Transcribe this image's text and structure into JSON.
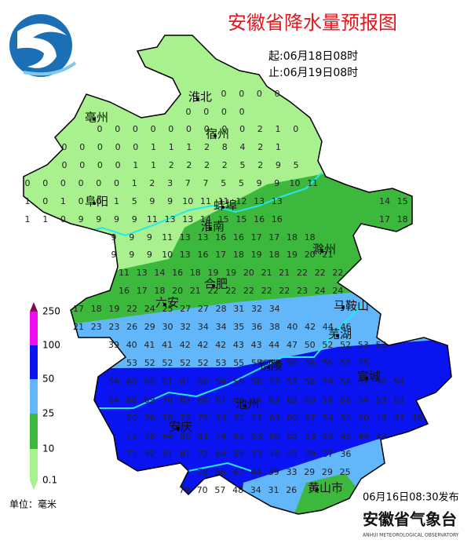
{
  "header": {
    "title": "安徽省降水量预报图",
    "start": "起:06月18日08时",
    "end": "止:06月19日08时"
  },
  "legend": {
    "levels": [
      0.1,
      10,
      25,
      50,
      100,
      250
    ],
    "unit": "单位：毫米"
  },
  "cities": [
    "淮北",
    "亳州",
    "宿州",
    "阜阳",
    "蚌埠",
    "淮南",
    "滁州",
    "合肥",
    "六安",
    "马鞍山",
    "芜湖",
    "铜陵",
    "宣城",
    "池州",
    "安庆",
    "黄山市"
  ],
  "grid_values": [
    [
      0,
      0,
      0,
      0
    ],
    [
      0,
      0,
      0,
      0
    ],
    [
      0,
      0,
      0,
      0,
      0,
      0,
      0,
      0,
      0,
      2,
      1,
      0
    ],
    [
      0,
      0,
      0,
      0,
      0,
      1,
      1,
      1,
      2,
      8,
      4,
      2,
      1
    ],
    [
      0,
      0,
      0,
      0,
      1,
      1,
      2,
      2,
      2,
      2,
      5,
      2,
      9,
      5
    ],
    [
      0,
      0,
      0,
      0,
      0,
      0,
      1,
      2,
      3,
      7,
      7,
      5,
      5,
      9,
      9,
      10,
      11
    ],
    [
      1,
      0,
      1,
      0,
      0,
      1,
      5,
      9,
      9,
      10,
      11,
      11,
      12,
      13,
      13
    ],
    [
      14,
      15
    ],
    [
      1,
      1,
      0,
      9,
      9,
      9,
      9,
      11,
      13,
      13,
      14,
      15,
      15,
      16,
      16
    ],
    [
      17,
      18
    ],
    [
      9,
      9,
      9,
      11,
      13,
      13,
      16,
      16,
      17,
      17,
      18,
      18
    ],
    [
      9,
      9,
      9,
      10,
      13,
      16,
      17,
      18,
      19,
      18,
      19,
      20,
      21
    ],
    [
      11,
      13,
      14,
      16,
      18,
      19,
      19,
      20,
      21,
      21,
      22,
      22,
      22
    ],
    [
      16,
      17,
      18,
      20,
      21,
      22,
      22,
      22,
      22,
      22,
      23,
      24,
      24
    ],
    [
      17,
      18,
      19,
      22,
      24,
      25,
      27,
      27,
      28,
      31,
      32,
      34
    ],
    [
      21,
      23,
      23,
      26,
      29,
      30,
      32,
      34,
      34,
      35,
      36,
      38,
      40,
      42,
      44,
      46
    ],
    [
      39,
      40,
      41,
      41,
      42,
      42,
      42,
      43,
      43,
      44,
      47,
      50,
      52,
      52,
      53,
      53
    ],
    [
      53,
      52,
      52,
      52,
      52,
      53,
      55,
      55,
      56,
      56,
      56,
      56,
      55,
      55
    ],
    [
      59,
      60,
      60,
      61,
      61,
      60,
      59,
      58,
      58,
      57,
      57,
      58,
      59,
      58,
      57,
      56,
      54
    ],
    [
      64,
      68,
      69,
      70,
      69,
      68,
      67,
      65,
      64,
      63,
      62,
      60,
      58,
      56,
      54,
      53,
      53
    ],
    [
      70,
      76,
      78,
      78,
      75,
      74,
      71,
      67,
      63,
      60,
      57,
      54,
      53,
      50,
      49,
      47,
      46
    ],
    [
      71,
      78,
      84,
      86,
      81,
      74,
      69,
      63,
      60,
      55,
      53,
      49,
      45,
      44,
      42
    ],
    [
      71,
      82,
      91,
      81,
      72,
      64,
      58,
      53,
      48,
      43,
      39,
      37,
      36
    ],
    [
      78,
      66,
      47,
      44,
      39,
      33,
      29,
      29,
      25
    ],
    [
      79,
      70,
      57,
      48,
      34,
      31,
      26
    ]
  ],
  "issued": "06月16日08:30发布",
  "org": {
    "name": "安徽省气象台",
    "english": "ANHUI METEOROLOGICAL OBSERVATORY"
  }
}
